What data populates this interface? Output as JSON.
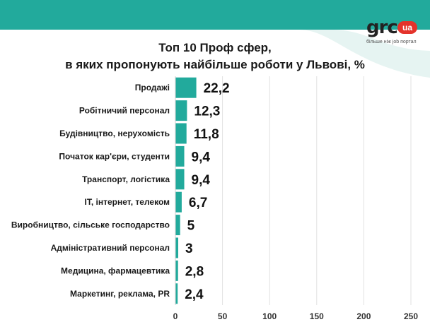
{
  "logo": {
    "word": "grc",
    "badge": "ua",
    "tagline": "більше ніж job портал"
  },
  "colors": {
    "bar": "#22aa9c",
    "band": "#22aa9c",
    "deco": "#e6f4f2",
    "text": "#1a1a1a"
  },
  "chart_data": {
    "type": "bar",
    "orientation": "horizontal",
    "title_line1": "Топ 10 Проф сфер,",
    "title_line2": "в яких пропонують найбільше роботи у Львові, %",
    "categories": [
      "Продажі",
      "Робітничий персонал",
      "Будівництво, нерухомість",
      "Початок кар'єри, студенти",
      "Транспорт, логістика",
      "IT, інтернет, телеком",
      "Виробництво, сільське господарство",
      "Адміністративний персонал",
      "Медицина, фармацевтика",
      "Маркетинг, реклама, PR"
    ],
    "values": [
      22.2,
      12.3,
      11.8,
      9.4,
      9.4,
      6.7,
      5,
      3,
      2.8,
      2.4
    ],
    "value_labels": [
      "22,2",
      "12,3",
      "11,8",
      "9,4",
      "9,4",
      "6,7",
      "5",
      "3",
      "2,8",
      "2,4"
    ],
    "x_ticks": [
      0,
      50,
      100,
      150,
      200,
      250
    ],
    "xlim": [
      0,
      250
    ],
    "grid": "vertical"
  }
}
